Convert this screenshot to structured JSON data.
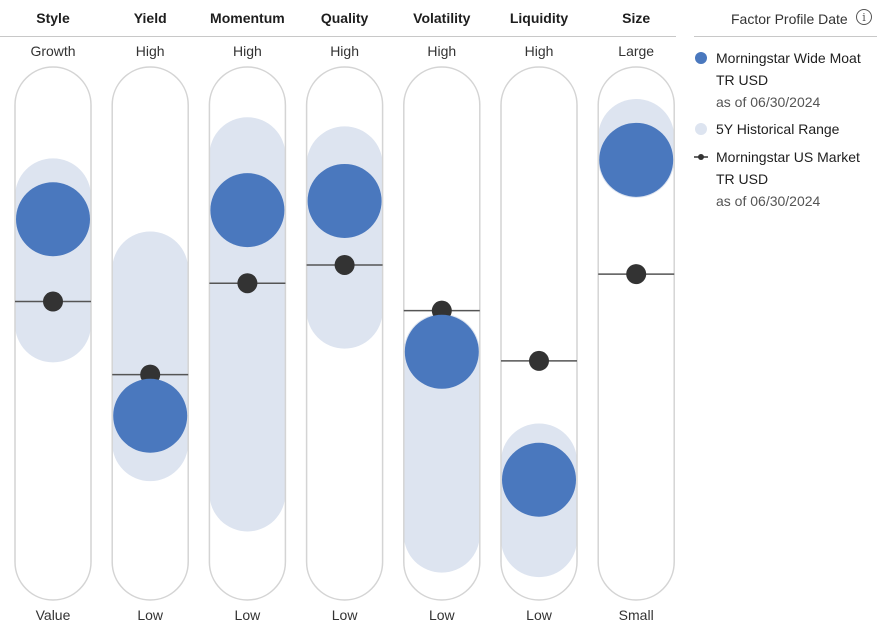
{
  "legend": {
    "title": "Factor Profile Date",
    "info_icon": "info-icon",
    "items": [
      {
        "type": "fund-circle",
        "color": "#4a78be",
        "label": "Morningstar Wide Moat TR USD",
        "sub": "as of 06/30/2024"
      },
      {
        "type": "range",
        "color": "#dde4f0",
        "label": "5Y Historical Range",
        "sub": ""
      },
      {
        "type": "benchmark-dot",
        "color": "#333333",
        "label": "Morningstar US Market TR USD",
        "sub": "as of 06/30/2024"
      }
    ]
  },
  "chart_data": {
    "type": "factor-profile",
    "scale": [
      0,
      100
    ],
    "colors": {
      "fund": "#4a78be",
      "range": "#dde4f0",
      "benchmark": "#333333",
      "track": "#d4d4d4"
    },
    "factors": [
      {
        "name": "Style",
        "top": "Growth",
        "bottom": "Value",
        "fund": 75,
        "benchmark": 57,
        "range": [
          52,
          80
        ]
      },
      {
        "name": "Yield",
        "top": "High",
        "bottom": "Low",
        "fund": 32,
        "benchmark": 41,
        "range": [
          26,
          64
        ]
      },
      {
        "name": "Momentum",
        "top": "High",
        "bottom": "Low",
        "fund": 77,
        "benchmark": 61,
        "range": [
          15,
          89
        ]
      },
      {
        "name": "Quality",
        "top": "High",
        "bottom": "Low",
        "fund": 79,
        "benchmark": 65,
        "range": [
          55,
          87
        ]
      },
      {
        "name": "Volatility",
        "top": "High",
        "bottom": "Low",
        "fund": 46,
        "benchmark": 55,
        "range": [
          6,
          46
        ]
      },
      {
        "name": "Liquidity",
        "top": "High",
        "bottom": "Low",
        "fund": 18,
        "benchmark": 44,
        "range": [
          5,
          22
        ]
      },
      {
        "name": "Size",
        "top": "Large",
        "bottom": "Small",
        "fund": 88,
        "benchmark": 63,
        "range": [
          88,
          93
        ]
      }
    ]
  }
}
